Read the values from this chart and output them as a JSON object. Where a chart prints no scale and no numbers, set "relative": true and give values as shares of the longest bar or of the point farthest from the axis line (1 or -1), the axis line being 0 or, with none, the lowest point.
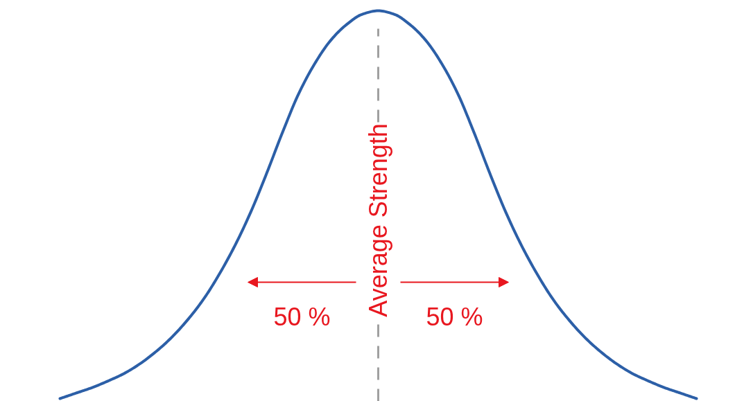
{
  "chart_data": {
    "type": "line",
    "relative": true,
    "categories": [
      null,
      null,
      null,
      null,
      null,
      null,
      null,
      null,
      null,
      null,
      null,
      null,
      null,
      null,
      null,
      null,
      null,
      null,
      null,
      null,
      null,
      null,
      null,
      null,
      null,
      null,
      null,
      null,
      null,
      null,
      null,
      null,
      null,
      null,
      null,
      null,
      null,
      null,
      null,
      null,
      null
    ],
    "series": [
      {
        "color": "#2c5fa7",
        "values": [
          0,
          0.014,
          0.028,
          0.045,
          0.064,
          0.089,
          0.12,
          0.157,
          0.202,
          0.255,
          0.32,
          0.395,
          0.482,
          0.582,
          0.688,
          0.786,
          0.863,
          0.923,
          0.964,
          0.991,
          1,
          0.991,
          0.964,
          0.923,
          0.863,
          0.786,
          0.688,
          0.582,
          0.482,
          0.395,
          0.32,
          0.255,
          0.202,
          0.157,
          0.12,
          0.089,
          0.064,
          0.045,
          0.028,
          0.014,
          0
        ]
      }
    ],
    "annotations": [
      "Average Strength",
      "50 %",
      "50 %"
    ]
  }
}
